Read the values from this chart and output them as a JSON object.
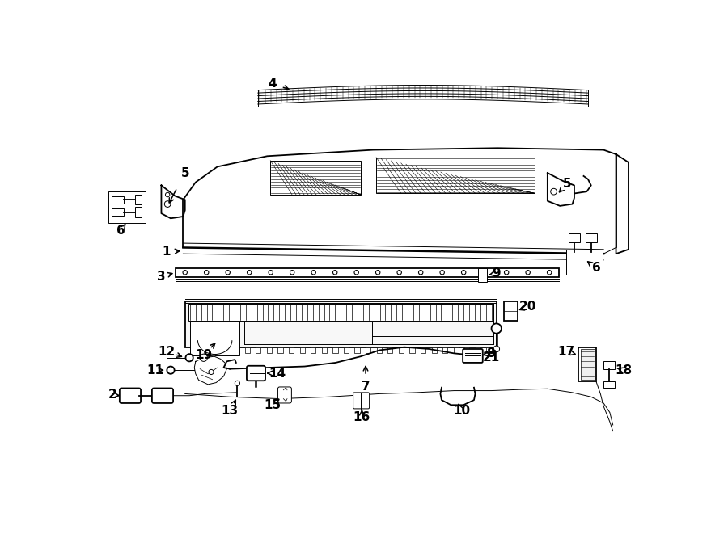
{
  "bg_color": "#ffffff",
  "line_color": "#000000",
  "fig_width": 9.0,
  "fig_height": 6.61,
  "dpi": 100,
  "lw_main": 1.3,
  "lw_thin": 0.7,
  "lw_thick": 2.0,
  "label_fs": 11
}
